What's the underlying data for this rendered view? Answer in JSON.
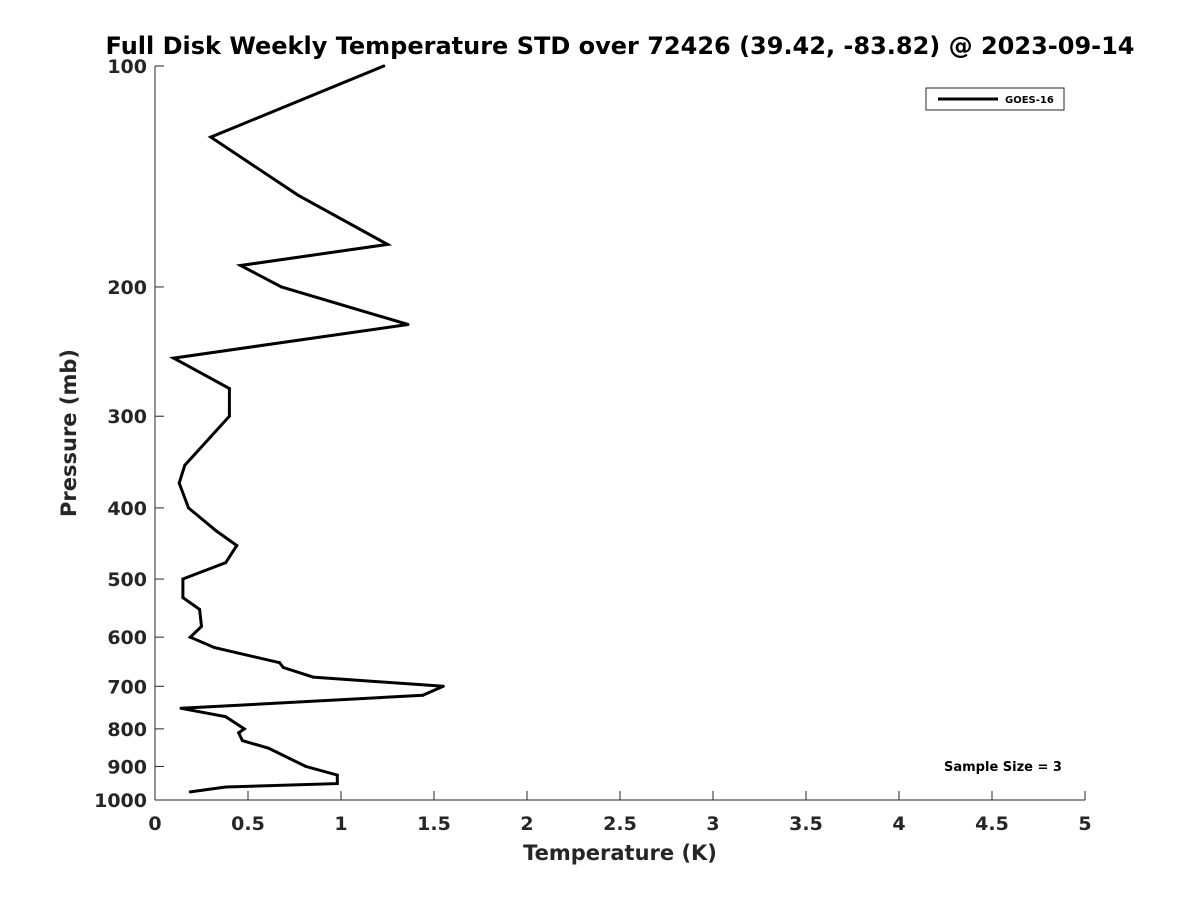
{
  "chart_data": {
    "type": "line",
    "title": "Full Disk Weekly Temperature STD over 72426 (39.42, -83.82) @ 2023-09-14",
    "xlabel": "Temperature (K)",
    "ylabel": "Pressure (mb)",
    "xlim": [
      0,
      5
    ],
    "ylim": [
      100,
      1000
    ],
    "y_scale": "log",
    "y_reversed": true,
    "x_ticks": [
      "0",
      "0.5",
      "1",
      "1.5",
      "2",
      "2.5",
      "3",
      "3.5",
      "4",
      "4.5",
      "5"
    ],
    "y_ticks": [
      "100",
      "200",
      "300",
      "400",
      "500",
      "600",
      "700",
      "800",
      "900",
      "1000"
    ],
    "grid": false,
    "legend_position": "top-right",
    "annotation": "Sample Size = 3",
    "series": [
      {
        "name": "GOES-16",
        "color": "#000000",
        "points": [
          {
            "x": 1.23,
            "p": 100
          },
          {
            "x": 0.3,
            "p": 125
          },
          {
            "x": 0.77,
            "p": 150
          },
          {
            "x": 1.25,
            "p": 175
          },
          {
            "x": 0.46,
            "p": 187
          },
          {
            "x": 0.68,
            "p": 200
          },
          {
            "x": 1.36,
            "p": 225
          },
          {
            "x": 0.1,
            "p": 250
          },
          {
            "x": 0.4,
            "p": 275
          },
          {
            "x": 0.4,
            "p": 300
          },
          {
            "x": 0.16,
            "p": 350
          },
          {
            "x": 0.13,
            "p": 370
          },
          {
            "x": 0.18,
            "p": 400
          },
          {
            "x": 0.33,
            "p": 430
          },
          {
            "x": 0.44,
            "p": 450
          },
          {
            "x": 0.38,
            "p": 475
          },
          {
            "x": 0.15,
            "p": 500
          },
          {
            "x": 0.15,
            "p": 530
          },
          {
            "x": 0.24,
            "p": 550
          },
          {
            "x": 0.25,
            "p": 580
          },
          {
            "x": 0.19,
            "p": 600
          },
          {
            "x": 0.32,
            "p": 620
          },
          {
            "x": 0.67,
            "p": 650
          },
          {
            "x": 0.69,
            "p": 660
          },
          {
            "x": 0.85,
            "p": 680
          },
          {
            "x": 1.55,
            "p": 700
          },
          {
            "x": 1.44,
            "p": 720
          },
          {
            "x": 0.14,
            "p": 750
          },
          {
            "x": 0.38,
            "p": 770
          },
          {
            "x": 0.48,
            "p": 800
          },
          {
            "x": 0.45,
            "p": 810
          },
          {
            "x": 0.47,
            "p": 830
          },
          {
            "x": 0.61,
            "p": 850
          },
          {
            "x": 0.81,
            "p": 900
          },
          {
            "x": 0.98,
            "p": 925
          },
          {
            "x": 0.98,
            "p": 950
          },
          {
            "x": 0.38,
            "p": 960
          },
          {
            "x": 0.19,
            "p": 975
          }
        ]
      }
    ]
  }
}
